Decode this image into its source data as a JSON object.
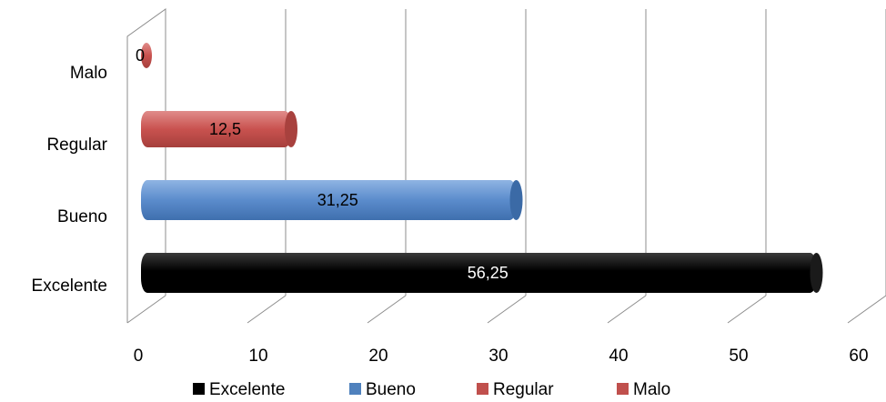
{
  "chart_data": {
    "type": "bar",
    "orientation": "horizontal",
    "style": "3d-cylinder",
    "categories": [
      "Excelente",
      "Bueno",
      "Regular",
      "Malo"
    ],
    "values": [
      56.25,
      31.25,
      12.5,
      0
    ],
    "data_labels": [
      "56,25",
      "31,25",
      "12,5",
      "0"
    ],
    "xlim": [
      0,
      60
    ],
    "x_ticks": [
      "0",
      "10",
      "20",
      "30",
      "40",
      "50",
      "60"
    ],
    "grid": true,
    "legend_position": "bottom",
    "legend": [
      "Excelente",
      "Bueno",
      "Regular",
      "Malo"
    ],
    "colors": {
      "Excelente": "#000000",
      "Bueno": "#4f81bd",
      "Regular": "#c0504d",
      "Malo": "#c0504d"
    },
    "title": "",
    "xlabel": "",
    "ylabel": ""
  }
}
